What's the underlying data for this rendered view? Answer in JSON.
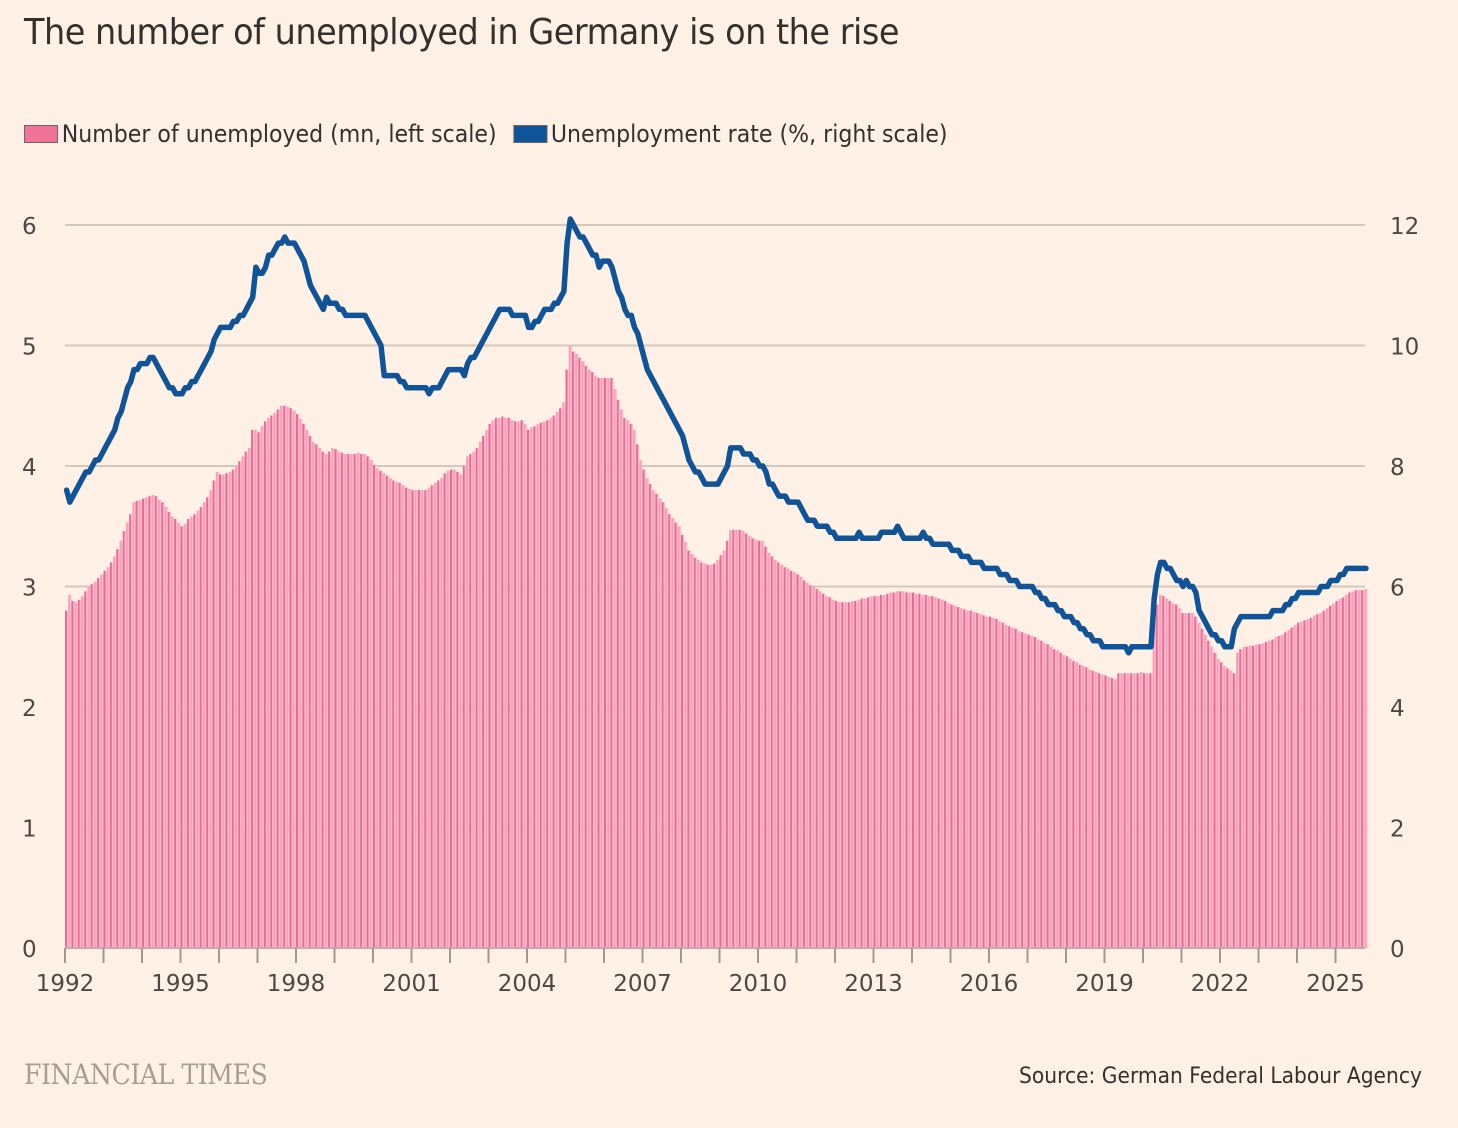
{
  "title": "The number of unemployed in Germany is on the rise",
  "legend": [
    {
      "label": "Number of unemployed (mn, left scale)",
      "color": "#f07499"
    },
    {
      "label": "Unemployment rate (%, right scale)",
      "color": "#0f5499"
    }
  ],
  "brand": "FINANCIAL TIMES",
  "source": "Source: German Federal Labour Agency",
  "colors": {
    "bar_dark": "#ec6a92",
    "bar_light": "#f7a0bb",
    "line": "#0f5499",
    "grid": "#d4c7bb",
    "background": "#fff1e5"
  },
  "chart_data": {
    "type": "bar+line",
    "title": "The number of unemployed in Germany is on the rise",
    "xlabel": "",
    "x_start": "1992-01",
    "frequency": "monthly",
    "x_tick_labels": [
      "1992",
      "1995",
      "1998",
      "2001",
      "2004",
      "2007",
      "2010",
      "2013",
      "2016",
      "2019",
      "2022",
      "2025"
    ],
    "x_range": [
      1992,
      2025.85
    ],
    "left_axis": {
      "label": "Number of unemployed (mn)",
      "ylim": [
        0,
        6
      ],
      "ticks": [
        "0",
        "1",
        "2",
        "3",
        "4",
        "5",
        "6"
      ]
    },
    "right_axis": {
      "label": "Unemployment rate (%)",
      "ylim": [
        0,
        12
      ],
      "ticks": [
        "0",
        "2",
        "4",
        "6",
        "8",
        "10",
        "12"
      ]
    },
    "grid": true,
    "legend_position": "top-left",
    "series": [
      {
        "name": "Number of unemployed (mn, left scale)",
        "type": "bar",
        "axis": "left",
        "values": [
          2.8,
          2.93,
          2.88,
          2.87,
          2.89,
          2.92,
          2.96,
          3.0,
          3.02,
          3.04,
          3.07,
          3.1,
          3.13,
          3.16,
          3.2,
          3.25,
          3.31,
          3.38,
          3.46,
          3.53,
          3.6,
          3.7,
          3.71,
          3.72,
          3.73,
          3.74,
          3.75,
          3.76,
          3.75,
          3.72,
          3.7,
          3.66,
          3.62,
          3.58,
          3.56,
          3.53,
          3.5,
          3.52,
          3.56,
          3.58,
          3.6,
          3.63,
          3.66,
          3.7,
          3.74,
          3.8,
          3.88,
          3.95,
          3.93,
          3.93,
          3.94,
          3.95,
          3.97,
          4.0,
          4.04,
          4.08,
          4.12,
          4.15,
          4.3,
          4.3,
          4.28,
          4.33,
          4.37,
          4.4,
          4.42,
          4.44,
          4.47,
          4.5,
          4.5,
          4.49,
          4.48,
          4.46,
          4.43,
          4.39,
          4.35,
          4.3,
          4.25,
          4.2,
          4.18,
          4.15,
          4.12,
          4.1,
          4.12,
          4.15,
          4.14,
          4.12,
          4.11,
          4.1,
          4.1,
          4.1,
          4.1,
          4.11,
          4.1,
          4.1,
          4.08,
          4.05,
          4.01,
          3.98,
          3.96,
          3.94,
          3.92,
          3.9,
          3.88,
          3.87,
          3.86,
          3.84,
          3.82,
          3.81,
          3.8,
          3.8,
          3.8,
          3.8,
          3.8,
          3.82,
          3.84,
          3.86,
          3.88,
          3.9,
          3.94,
          3.96,
          3.97,
          3.97,
          3.95,
          3.93,
          4.0,
          4.08,
          4.1,
          4.12,
          4.15,
          4.2,
          4.25,
          4.3,
          4.35,
          4.38,
          4.4,
          4.4,
          4.41,
          4.4,
          4.4,
          4.38,
          4.37,
          4.37,
          4.38,
          4.35,
          4.3,
          4.32,
          4.33,
          4.35,
          4.36,
          4.37,
          4.38,
          4.4,
          4.42,
          4.45,
          4.48,
          4.53,
          4.8,
          5.0,
          4.95,
          4.93,
          4.9,
          4.87,
          4.83,
          4.8,
          4.78,
          4.75,
          4.73,
          4.73,
          4.73,
          4.73,
          4.73,
          4.64,
          4.55,
          4.47,
          4.4,
          4.38,
          4.35,
          4.3,
          4.18,
          4.05,
          3.97,
          3.9,
          3.85,
          3.8,
          3.77,
          3.73,
          3.7,
          3.65,
          3.6,
          3.57,
          3.53,
          3.5,
          3.43,
          3.37,
          3.3,
          3.27,
          3.24,
          3.22,
          3.2,
          3.19,
          3.18,
          3.18,
          3.19,
          3.22,
          3.26,
          3.3,
          3.38,
          3.47,
          3.47,
          3.47,
          3.47,
          3.46,
          3.44,
          3.42,
          3.4,
          3.39,
          3.38,
          3.38,
          3.33,
          3.28,
          3.25,
          3.22,
          3.2,
          3.18,
          3.16,
          3.15,
          3.13,
          3.12,
          3.1,
          3.08,
          3.05,
          3.03,
          3.01,
          3.0,
          2.98,
          2.96,
          2.94,
          2.92,
          2.91,
          2.89,
          2.88,
          2.87,
          2.87,
          2.87,
          2.87,
          2.88,
          2.88,
          2.89,
          2.9,
          2.9,
          2.91,
          2.92,
          2.92,
          2.92,
          2.93,
          2.93,
          2.94,
          2.95,
          2.95,
          2.96,
          2.96,
          2.96,
          2.95,
          2.95,
          2.95,
          2.94,
          2.94,
          2.93,
          2.93,
          2.92,
          2.92,
          2.91,
          2.9,
          2.89,
          2.88,
          2.86,
          2.85,
          2.84,
          2.83,
          2.82,
          2.81,
          2.8,
          2.8,
          2.79,
          2.78,
          2.77,
          2.76,
          2.75,
          2.75,
          2.74,
          2.73,
          2.71,
          2.7,
          2.68,
          2.67,
          2.66,
          2.65,
          2.63,
          2.62,
          2.61,
          2.6,
          2.59,
          2.58,
          2.56,
          2.55,
          2.53,
          2.52,
          2.5,
          2.48,
          2.47,
          2.45,
          2.43,
          2.42,
          2.4,
          2.38,
          2.37,
          2.35,
          2.34,
          2.33,
          2.31,
          2.3,
          2.29,
          2.28,
          2.27,
          2.26,
          2.25,
          2.24,
          2.23,
          2.28,
          2.28,
          2.28,
          2.28,
          2.28,
          2.28,
          2.28,
          2.29,
          2.28,
          2.28,
          2.28,
          2.7,
          2.85,
          2.93,
          2.92,
          2.9,
          2.88,
          2.86,
          2.85,
          2.82,
          2.78,
          2.78,
          2.78,
          2.78,
          2.75,
          2.7,
          2.65,
          2.6,
          2.55,
          2.5,
          2.45,
          2.4,
          2.37,
          2.34,
          2.32,
          2.3,
          2.28,
          2.45,
          2.48,
          2.5,
          2.5,
          2.51,
          2.51,
          2.52,
          2.52,
          2.53,
          2.54,
          2.55,
          2.56,
          2.58,
          2.59,
          2.6,
          2.62,
          2.64,
          2.66,
          2.68,
          2.7,
          2.71,
          2.72,
          2.73,
          2.74,
          2.76,
          2.77,
          2.78,
          2.8,
          2.82,
          2.84,
          2.86,
          2.88,
          2.9,
          2.91,
          2.93,
          2.95,
          2.96,
          2.97,
          2.97,
          2.97,
          2.98
        ]
      },
      {
        "name": "Unemployment rate (%, right scale)",
        "type": "line",
        "axis": "right",
        "values": [
          7.6,
          7.4,
          7.5,
          7.6,
          7.7,
          7.8,
          7.9,
          7.9,
          8.0,
          8.1,
          8.1,
          8.2,
          8.3,
          8.4,
          8.5,
          8.6,
          8.8,
          8.9,
          9.1,
          9.3,
          9.4,
          9.6,
          9.6,
          9.7,
          9.7,
          9.7,
          9.8,
          9.8,
          9.7,
          9.6,
          9.5,
          9.4,
          9.3,
          9.3,
          9.2,
          9.2,
          9.2,
          9.3,
          9.3,
          9.4,
          9.4,
          9.5,
          9.6,
          9.7,
          9.8,
          9.9,
          10.1,
          10.2,
          10.3,
          10.3,
          10.3,
          10.3,
          10.4,
          10.4,
          10.5,
          10.5,
          10.6,
          10.7,
          10.8,
          11.3,
          11.2,
          11.2,
          11.3,
          11.5,
          11.5,
          11.6,
          11.7,
          11.7,
          11.8,
          11.7,
          11.7,
          11.7,
          11.6,
          11.5,
          11.4,
          11.2,
          11.0,
          10.9,
          10.8,
          10.7,
          10.6,
          10.8,
          10.7,
          10.7,
          10.7,
          10.6,
          10.6,
          10.5,
          10.5,
          10.5,
          10.5,
          10.5,
          10.5,
          10.5,
          10.4,
          10.3,
          10.2,
          10.1,
          10.0,
          9.5,
          9.5,
          9.5,
          9.5,
          9.5,
          9.4,
          9.4,
          9.3,
          9.3,
          9.3,
          9.3,
          9.3,
          9.3,
          9.3,
          9.2,
          9.3,
          9.3,
          9.3,
          9.4,
          9.5,
          9.6,
          9.6,
          9.6,
          9.6,
          9.6,
          9.5,
          9.7,
          9.8,
          9.8,
          9.9,
          10.0,
          10.1,
          10.2,
          10.3,
          10.4,
          10.5,
          10.6,
          10.6,
          10.6,
          10.6,
          10.5,
          10.5,
          10.5,
          10.5,
          10.5,
          10.3,
          10.3,
          10.4,
          10.4,
          10.5,
          10.6,
          10.6,
          10.6,
          10.7,
          10.7,
          10.8,
          10.9,
          11.7,
          12.1,
          12.0,
          11.9,
          11.8,
          11.8,
          11.7,
          11.6,
          11.5,
          11.5,
          11.3,
          11.4,
          11.4,
          11.4,
          11.3,
          11.1,
          10.9,
          10.8,
          10.6,
          10.5,
          10.5,
          10.3,
          10.2,
          10.0,
          9.8,
          9.6,
          9.5,
          9.4,
          9.3,
          9.2,
          9.1,
          9.0,
          8.9,
          8.8,
          8.7,
          8.6,
          8.5,
          8.3,
          8.1,
          8.0,
          7.9,
          7.9,
          7.8,
          7.7,
          7.7,
          7.7,
          7.7,
          7.7,
          7.8,
          7.9,
          8.0,
          8.3,
          8.3,
          8.3,
          8.3,
          8.2,
          8.2,
          8.2,
          8.1,
          8.1,
          8.0,
          8.0,
          7.9,
          7.7,
          7.7,
          7.6,
          7.5,
          7.5,
          7.5,
          7.4,
          7.4,
          7.4,
          7.4,
          7.3,
          7.2,
          7.1,
          7.1,
          7.1,
          7.0,
          7.0,
          7.0,
          7.0,
          6.9,
          6.9,
          6.8,
          6.8,
          6.8,
          6.8,
          6.8,
          6.8,
          6.8,
          6.9,
          6.8,
          6.8,
          6.8,
          6.8,
          6.8,
          6.8,
          6.9,
          6.9,
          6.9,
          6.9,
          6.9,
          7.0,
          6.9,
          6.8,
          6.8,
          6.8,
          6.8,
          6.8,
          6.8,
          6.9,
          6.8,
          6.8,
          6.7,
          6.7,
          6.7,
          6.7,
          6.7,
          6.7,
          6.6,
          6.6,
          6.6,
          6.5,
          6.5,
          6.5,
          6.4,
          6.4,
          6.4,
          6.4,
          6.3,
          6.3,
          6.3,
          6.3,
          6.3,
          6.2,
          6.2,
          6.2,
          6.1,
          6.1,
          6.1,
          6.0,
          6.0,
          6.0,
          6.0,
          6.0,
          5.9,
          5.9,
          5.8,
          5.8,
          5.7,
          5.7,
          5.7,
          5.6,
          5.6,
          5.5,
          5.5,
          5.5,
          5.4,
          5.4,
          5.3,
          5.3,
          5.2,
          5.2,
          5.1,
          5.1,
          5.1,
          5.0,
          5.0,
          5.0,
          5.0,
          5.0,
          5.0,
          5.0,
          5.0,
          4.9,
          5.0,
          5.0,
          5.0,
          5.0,
          5.0,
          5.0,
          5.0,
          5.8,
          6.2,
          6.4,
          6.4,
          6.3,
          6.3,
          6.2,
          6.1,
          6.1,
          6.0,
          6.1,
          6.0,
          6.0,
          5.9,
          5.6,
          5.5,
          5.4,
          5.3,
          5.2,
          5.2,
          5.1,
          5.1,
          5.0,
          5.0,
          5.0,
          5.3,
          5.4,
          5.5,
          5.5,
          5.5,
          5.5,
          5.5,
          5.5,
          5.5,
          5.5,
          5.5,
          5.5,
          5.6,
          5.6,
          5.6,
          5.6,
          5.7,
          5.7,
          5.8,
          5.8,
          5.9,
          5.9,
          5.9,
          5.9,
          5.9,
          5.9,
          5.9,
          6.0,
          6.0,
          6.0,
          6.1,
          6.1,
          6.1,
          6.2,
          6.2,
          6.3,
          6.3,
          6.3,
          6.3,
          6.3,
          6.3,
          6.3
        ]
      }
    ]
  }
}
